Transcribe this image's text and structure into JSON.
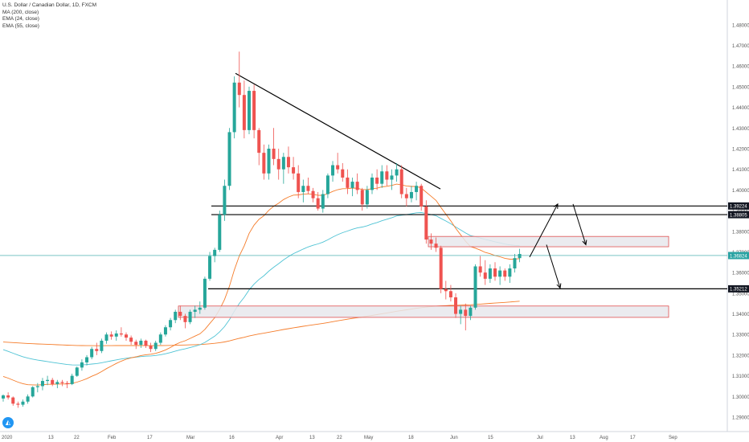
{
  "legend": {
    "title": "U.S. Dollar / Canadian Dollar, 1D, FXCM",
    "ma200": "MA (200, close)",
    "ema24": "EMA (24, close)",
    "ema55": "EMA (55, close)"
  },
  "colors": {
    "up": "#26a69a",
    "down": "#ef5350",
    "ema_fast": "#f57c2a",
    "ema_slow": "#4fc3d4",
    "ma200": "#f57c2a",
    "zone_fill": "#e7e8ec",
    "zone_border": "#e05050",
    "label_bg": "#131722",
    "current_label_bg": "#2aa3a3"
  },
  "icons": {
    "logo": "tradingview-logo-icon",
    "arrows": "arrow-icon"
  },
  "chart_data": {
    "type": "candlestick",
    "symbol": "USDCAD",
    "timeframe": "1D",
    "ylim": [
      1.283,
      1.492
    ],
    "y_ticks": [
      "1.48000",
      "1.47000",
      "1.46000",
      "1.45000",
      "1.44000",
      "1.43000",
      "1.42000",
      "1.41000",
      "1.40000",
      "1.39000",
      "1.38000",
      "1.37000",
      "1.36000",
      "1.35000",
      "1.34000",
      "1.33000",
      "1.32000",
      "1.31000",
      "1.30000",
      "1.29000"
    ],
    "x_ticks": [
      "2020",
      "13",
      "22",
      "Feb",
      "17",
      "Mar",
      "16",
      "Apr",
      "13",
      "22",
      "May",
      "18",
      "Jun",
      "15",
      "Jul",
      "13",
      "Aug",
      "17",
      "Sep"
    ],
    "price_labels": [
      {
        "value": 1.39224,
        "text": "1.39224"
      },
      {
        "value": 1.38805,
        "text": "1.38805"
      },
      {
        "value": 1.36824,
        "text": "1.36824",
        "current": true
      },
      {
        "value": 1.35212,
        "text": "1.35212"
      }
    ],
    "horizontal_levels": [
      1.39224,
      1.38805,
      1.35212
    ],
    "zones": [
      {
        "top": 1.3775,
        "bottom": 1.3725
      },
      {
        "top": 1.3438,
        "bottom": 1.3383
      }
    ],
    "trendline": {
      "from": 1.4565,
      "to": 1.4005
    },
    "projected_arrows": [
      {
        "from": 1.3675,
        "to": 1.3932
      },
      {
        "from": 1.3932,
        "to": 1.3735
      },
      {
        "from": 1.3735,
        "to": 1.3525
      }
    ],
    "ohlc": [
      [
        1.299,
        1.301,
        1.2975,
        1.3005
      ],
      [
        1.3005,
        1.302,
        1.2985,
        1.2995
      ],
      [
        1.2995,
        1.3,
        1.2955,
        1.2965
      ],
      [
        1.2965,
        1.2975,
        1.2945,
        1.296
      ],
      [
        1.296,
        1.2985,
        1.295,
        1.2975
      ],
      [
        1.2975,
        1.301,
        1.2965,
        1.3
      ],
      [
        1.3,
        1.305,
        1.2995,
        1.3045
      ],
      [
        1.3045,
        1.3065,
        1.302,
        1.305
      ],
      [
        1.305,
        1.309,
        1.303,
        1.3075
      ],
      [
        1.3075,
        1.31,
        1.3055,
        1.308
      ],
      [
        1.308,
        1.309,
        1.305,
        1.306
      ],
      [
        1.306,
        1.308,
        1.304,
        1.307
      ],
      [
        1.307,
        1.308,
        1.305,
        1.3065
      ],
      [
        1.3065,
        1.3075,
        1.304,
        1.306
      ],
      [
        1.306,
        1.311,
        1.3055,
        1.31
      ],
      [
        1.31,
        1.3145,
        1.3095,
        1.314
      ],
      [
        1.314,
        1.318,
        1.3125,
        1.3165
      ],
      [
        1.3165,
        1.32,
        1.315,
        1.319
      ],
      [
        1.319,
        1.324,
        1.318,
        1.323
      ],
      [
        1.323,
        1.326,
        1.32,
        1.322
      ],
      [
        1.322,
        1.328,
        1.321,
        1.327
      ],
      [
        1.327,
        1.331,
        1.3255,
        1.33
      ],
      [
        1.33,
        1.3315,
        1.3275,
        1.329
      ],
      [
        1.329,
        1.332,
        1.327,
        1.3305
      ],
      [
        1.3305,
        1.3335,
        1.329,
        1.33
      ],
      [
        1.33,
        1.331,
        1.327,
        1.3285
      ],
      [
        1.3285,
        1.3295,
        1.325,
        1.3265
      ],
      [
        1.3265,
        1.3275,
        1.323,
        1.325
      ],
      [
        1.325,
        1.328,
        1.3235,
        1.327
      ],
      [
        1.327,
        1.3275,
        1.3235,
        1.3245
      ],
      [
        1.3245,
        1.326,
        1.3215,
        1.323
      ],
      [
        1.323,
        1.327,
        1.322,
        1.326
      ],
      [
        1.326,
        1.331,
        1.325,
        1.33
      ],
      [
        1.33,
        1.3345,
        1.329,
        1.3335
      ],
      [
        1.3335,
        1.338,
        1.332,
        1.337
      ],
      [
        1.337,
        1.342,
        1.3355,
        1.341
      ],
      [
        1.341,
        1.344,
        1.337,
        1.339
      ],
      [
        1.339,
        1.34,
        1.333,
        1.336
      ],
      [
        1.336,
        1.342,
        1.335,
        1.341
      ],
      [
        1.341,
        1.344,
        1.338,
        1.342
      ],
      [
        1.342,
        1.346,
        1.34,
        1.343
      ],
      [
        1.343,
        1.358,
        1.342,
        1.357
      ],
      [
        1.357,
        1.37,
        1.356,
        1.368
      ],
      [
        1.368,
        1.372,
        1.365,
        1.371
      ],
      [
        1.371,
        1.39,
        1.37,
        1.388
      ],
      [
        1.388,
        1.405,
        1.385,
        1.402
      ],
      [
        1.402,
        1.43,
        1.4,
        1.428
      ],
      [
        1.428,
        1.455,
        1.425,
        1.452
      ],
      [
        1.452,
        1.467,
        1.44,
        1.446
      ],
      [
        1.446,
        1.453,
        1.425,
        1.429
      ],
      [
        1.429,
        1.45,
        1.427,
        1.448
      ],
      [
        1.448,
        1.451,
        1.425,
        1.429
      ],
      [
        1.429,
        1.43,
        1.412,
        1.418
      ],
      [
        1.418,
        1.422,
        1.405,
        1.408
      ],
      [
        1.408,
        1.422,
        1.405,
        1.42
      ],
      [
        1.42,
        1.43,
        1.412,
        1.415
      ],
      [
        1.415,
        1.42,
        1.405,
        1.41
      ],
      [
        1.41,
        1.418,
        1.403,
        1.416
      ],
      [
        1.416,
        1.421,
        1.408,
        1.411
      ],
      [
        1.411,
        1.416,
        1.405,
        1.408
      ],
      [
        1.408,
        1.412,
        1.396,
        1.399
      ],
      [
        1.399,
        1.405,
        1.394,
        1.402
      ],
      [
        1.402,
        1.406,
        1.398,
        1.3995
      ],
      [
        1.3995,
        1.401,
        1.394,
        1.396
      ],
      [
        1.396,
        1.399,
        1.39,
        1.391
      ],
      [
        1.391,
        1.4,
        1.389,
        1.398
      ],
      [
        1.398,
        1.408,
        1.396,
        1.407
      ],
      [
        1.407,
        1.414,
        1.404,
        1.412
      ],
      [
        1.412,
        1.418,
        1.408,
        1.41
      ],
      [
        1.41,
        1.413,
        1.404,
        1.406
      ],
      [
        1.406,
        1.41,
        1.398,
        1.401
      ],
      [
        1.401,
        1.406,
        1.397,
        1.404
      ],
      [
        1.404,
        1.408,
        1.398,
        1.4
      ],
      [
        1.4,
        1.401,
        1.39,
        1.393
      ],
      [
        1.393,
        1.402,
        1.391,
        1.4
      ],
      [
        1.4,
        1.408,
        1.398,
        1.406
      ],
      [
        1.406,
        1.41,
        1.4,
        1.403
      ],
      [
        1.403,
        1.412,
        1.401,
        1.409
      ],
      [
        1.409,
        1.412,
        1.402,
        1.405
      ],
      [
        1.405,
        1.41,
        1.4,
        1.407
      ],
      [
        1.407,
        1.413,
        1.404,
        1.41
      ],
      [
        1.41,
        1.412,
        1.396,
        1.398
      ],
      [
        1.398,
        1.401,
        1.392,
        1.396
      ],
      [
        1.396,
        1.402,
        1.394,
        1.399
      ],
      [
        1.399,
        1.404,
        1.395,
        1.402
      ],
      [
        1.402,
        1.403,
        1.39,
        1.392
      ],
      [
        1.392,
        1.395,
        1.374,
        1.376
      ],
      [
        1.376,
        1.379,
        1.371,
        1.374
      ],
      [
        1.374,
        1.377,
        1.37,
        1.372
      ],
      [
        1.372,
        1.373,
        1.35,
        1.352
      ],
      [
        1.352,
        1.356,
        1.347,
        1.351
      ],
      [
        1.351,
        1.354,
        1.346,
        1.348
      ],
      [
        1.348,
        1.35,
        1.338,
        1.34
      ],
      [
        1.34,
        1.344,
        1.335,
        1.342
      ],
      [
        1.342,
        1.345,
        1.332,
        1.339
      ],
      [
        1.339,
        1.344,
        1.337,
        1.343
      ],
      [
        1.343,
        1.364,
        1.342,
        1.363
      ],
      [
        1.363,
        1.368,
        1.358,
        1.36
      ],
      [
        1.36,
        1.366,
        1.354,
        1.357
      ],
      [
        1.357,
        1.364,
        1.355,
        1.362
      ],
      [
        1.362,
        1.365,
        1.356,
        1.358
      ],
      [
        1.358,
        1.363,
        1.354,
        1.361
      ],
      [
        1.361,
        1.362,
        1.356,
        1.358
      ],
      [
        1.358,
        1.364,
        1.355,
        1.362
      ],
      [
        1.362,
        1.369,
        1.36,
        1.367
      ],
      [
        1.367,
        1.3715,
        1.365,
        1.369
      ]
    ]
  }
}
